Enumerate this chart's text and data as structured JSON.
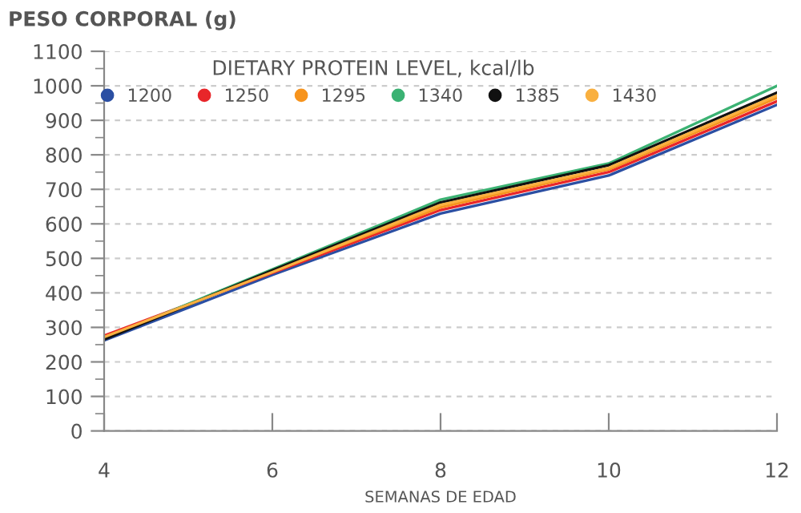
{
  "chart_data": {
    "type": "line",
    "ylabel": "PESO CORPORAL (g)",
    "xlabel": "SEMANAS DE EDAD",
    "legend_title": "DIETARY PROTEIN LEVEL, kcal/lb",
    "x": [
      4,
      6,
      8,
      10,
      12
    ],
    "series": [
      {
        "name": "1200",
        "color": "#2b4fa3",
        "values": [
          262,
          452,
          630,
          740,
          945
        ]
      },
      {
        "name": "1250",
        "color": "#e8262a",
        "values": [
          276,
          458,
          640,
          750,
          955
        ]
      },
      {
        "name": "1295",
        "color": "#f7941d",
        "values": [
          270,
          462,
          648,
          758,
          965
        ]
      },
      {
        "name": "1340",
        "color": "#3bb273",
        "values": [
          268,
          468,
          670,
          775,
          1000
        ]
      },
      {
        "name": "1385",
        "color": "#111111",
        "values": [
          265,
          465,
          662,
          770,
          980
        ]
      },
      {
        "name": "1430",
        "color": "#f9b040",
        "values": [
          272,
          460,
          655,
          762,
          972
        ]
      }
    ],
    "xlim": [
      4,
      12
    ],
    "xticks": [
      4,
      6,
      8,
      10,
      12
    ],
    "ylim": [
      0,
      1100
    ],
    "yticks": [
      0,
      {
        "value": 50,
        "label": null
      },
      100,
      {
        "value": 150,
        "label": null
      },
      200,
      {
        "value": 250,
        "label": null
      },
      300,
      {
        "value": 350,
        "label": null
      },
      400,
      {
        "value": 450,
        "label": null
      },
      500,
      {
        "value": 550,
        "label": null
      },
      600,
      {
        "value": 650,
        "label": null
      },
      700,
      {
        "value": 750,
        "label": null
      },
      800,
      {
        "value": 850,
        "label": null
      },
      900,
      {
        "value": 950,
        "label": null
      },
      1000,
      {
        "value": 1050,
        "label": null
      },
      1100
    ],
    "grid": "y",
    "legend": "top",
    "marker": "none",
    "line_style": "solid"
  }
}
